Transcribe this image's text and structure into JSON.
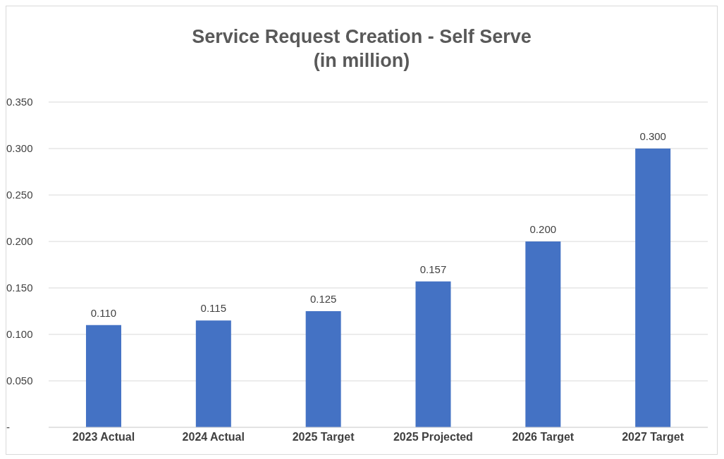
{
  "chart_data": {
    "type": "bar",
    "title": "Service Request Creation - Self Serve",
    "subtitle": "(in million)",
    "categories": [
      "2023 Actual",
      "2024 Actual",
      "2025 Target",
      "2025 Projected",
      "2026 Target",
      "2027 Target"
    ],
    "values": [
      0.11,
      0.115,
      0.125,
      0.157,
      0.2,
      0.3
    ],
    "value_labels": [
      "0.110",
      "0.115",
      "0.125",
      "0.157",
      "0.200",
      "0.300"
    ],
    "color": "#4472c4",
    "ylim": [
      0,
      0.35
    ],
    "yticks": [
      {
        "value": 0,
        "label": "-"
      },
      {
        "value": 0.05,
        "label": "0.050"
      },
      {
        "value": 0.1,
        "label": "0.100"
      },
      {
        "value": 0.15,
        "label": "0.150"
      },
      {
        "value": 0.2,
        "label": "0.200"
      },
      {
        "value": 0.25,
        "label": "0.250"
      },
      {
        "value": 0.3,
        "label": "0.300"
      },
      {
        "value": 0.35,
        "label": "0.350"
      }
    ],
    "grid": "y"
  }
}
